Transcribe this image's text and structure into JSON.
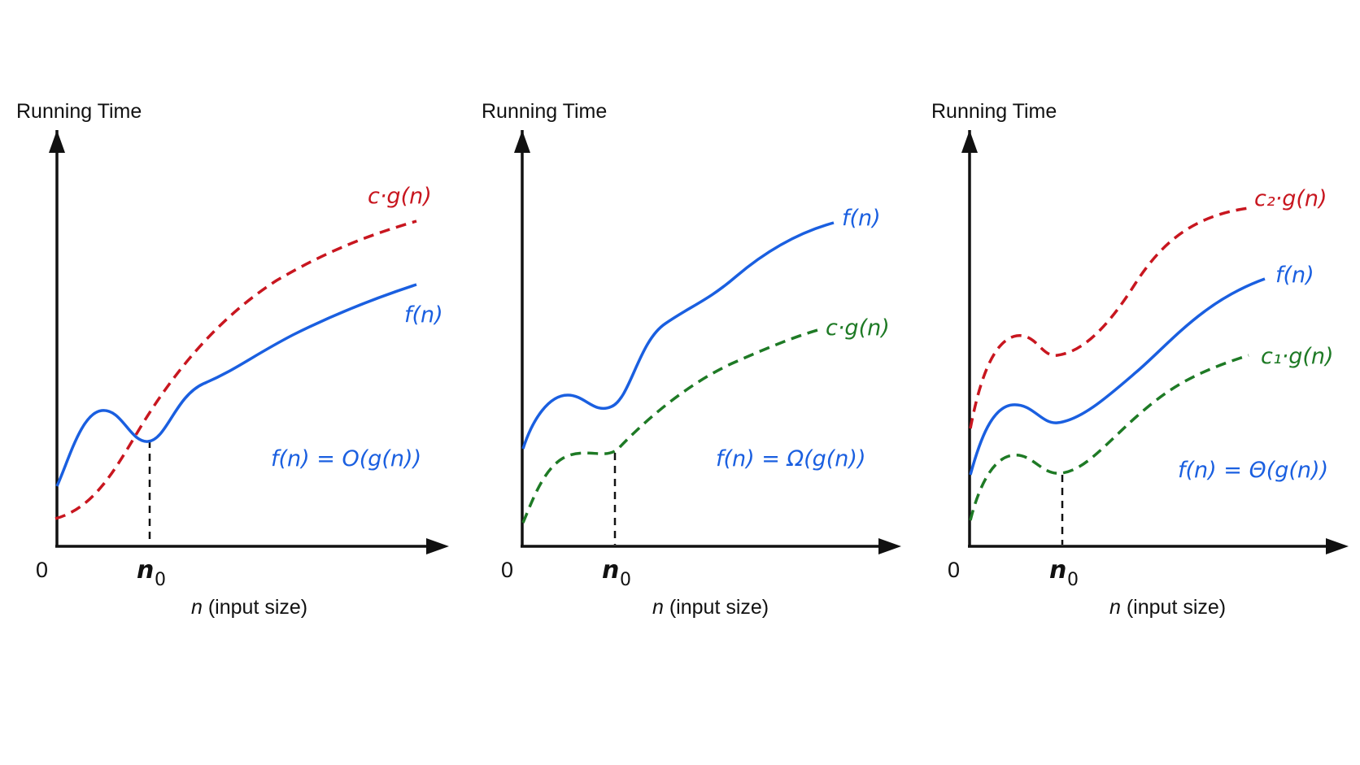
{
  "colors": {
    "f_curve": "#1a5fe0",
    "upper_bound": "#c8161f",
    "lower_bound": "#1e7a25",
    "axes": "#111111"
  },
  "panels": [
    {
      "y_axis_label": "Running Time",
      "x_axis_label_var": "n",
      "x_axis_label_rest": " (input size)",
      "origin_label": "0",
      "threshold_label": "n",
      "threshold_sub": "0",
      "relation_text": "f(n) = O(g(n))",
      "curve_labels": [
        {
          "text": "c·g(n)",
          "color": "upper_bound"
        },
        {
          "text": "f(n)",
          "color": "f_curve"
        }
      ]
    },
    {
      "y_axis_label": "Running Time",
      "x_axis_label_var": "n",
      "x_axis_label_rest": " (input size)",
      "origin_label": "0",
      "threshold_label": "n",
      "threshold_sub": "0",
      "relation_text": "f(n) = Ω(g(n))",
      "curve_labels": [
        {
          "text": "f(n)",
          "color": "f_curve"
        },
        {
          "text": "c·g(n)",
          "color": "lower_bound"
        }
      ]
    },
    {
      "y_axis_label": "Running Time",
      "x_axis_label_var": "n",
      "x_axis_label_rest": " (input size)",
      "origin_label": "0",
      "threshold_label": "n",
      "threshold_sub": "0",
      "relation_text": "f(n) = Θ(g(n))",
      "curve_labels": [
        {
          "text": "c₂·g(n)",
          "color": "upper_bound"
        },
        {
          "text": "f(n)",
          "color": "f_curve"
        },
        {
          "text": "c₁·g(n)",
          "color": "lower_bound"
        }
      ]
    }
  ]
}
